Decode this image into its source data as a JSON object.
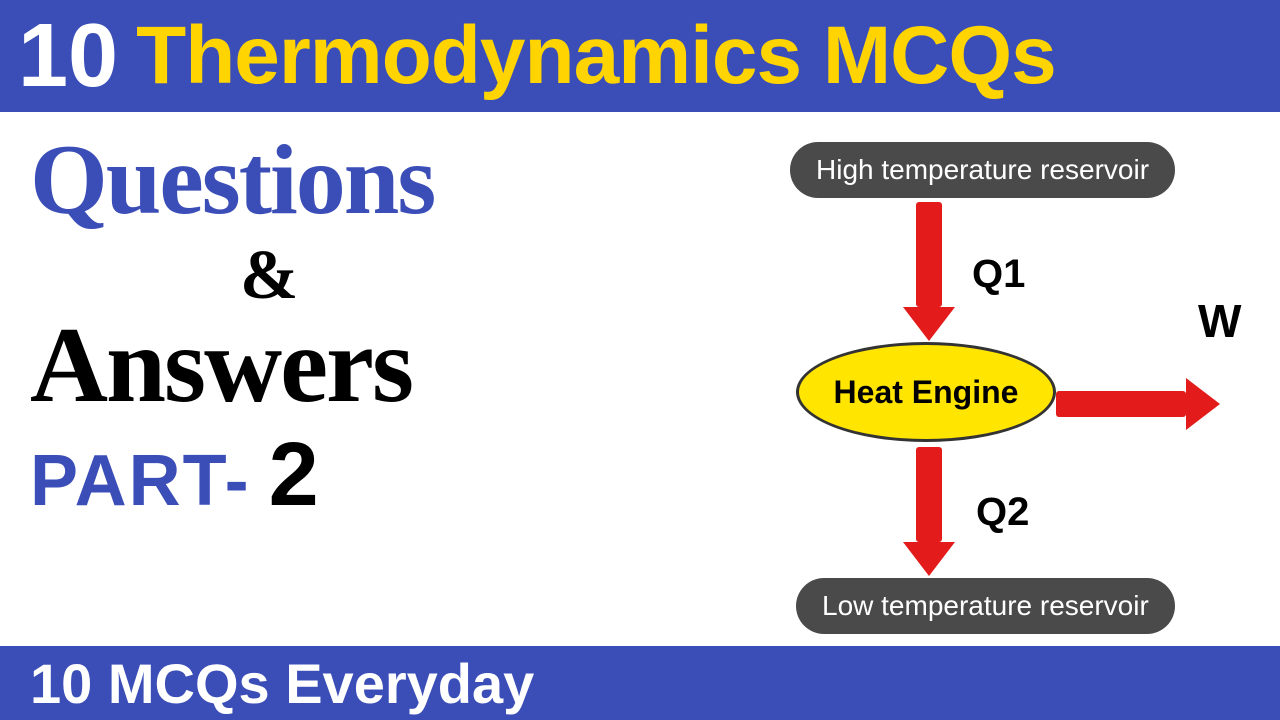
{
  "header": {
    "number": "10",
    "title": "Thermodynamics MCQs"
  },
  "left": {
    "questions": "Questions",
    "amp": "&",
    "answers": "Answers",
    "part_label": "PART-",
    "part_num": "2"
  },
  "diagram": {
    "top_reservoir": "High temperature reservoir",
    "bottom_reservoir": "Low temperature reservoir",
    "engine": "Heat Engine",
    "q1": "Q1",
    "q2": "Q2",
    "w": "W",
    "colors": {
      "arrow": "#e31b1b",
      "oval_fill": "#ffe500",
      "oval_border": "#333333",
      "pill_bg": "#4a4a4a",
      "pill_text": "#ffffff"
    }
  },
  "footer": {
    "text": "10 MCQs Everyday"
  },
  "palette": {
    "blue": "#3b4eb8",
    "yellow": "#ffd400",
    "black": "#000000",
    "white": "#ffffff"
  }
}
